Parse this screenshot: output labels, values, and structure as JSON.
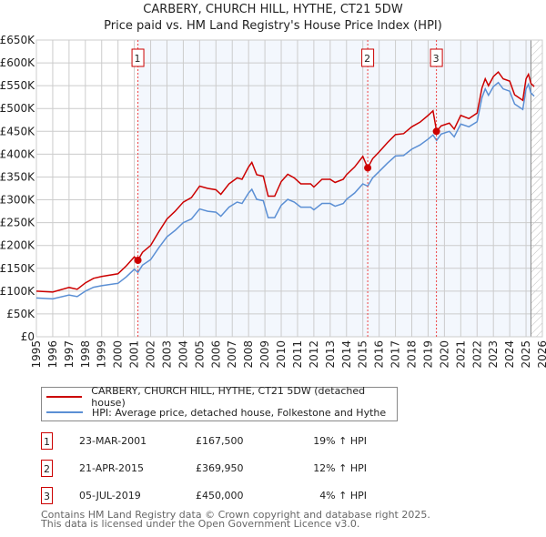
{
  "chart_data": {
    "type": "line",
    "title": "CARBERY, CHURCH HILL, HYTHE, CT21 5DW",
    "subtitle": "Price paid vs. HM Land Registry's House Price Index (HPI)",
    "xlim": [
      1995,
      2026
    ],
    "ylim": [
      0,
      650000
    ],
    "x_ticks": [
      "1995",
      "1996",
      "1997",
      "1998",
      "1999",
      "2000",
      "2001",
      "2002",
      "2003",
      "2004",
      "2005",
      "2006",
      "2007",
      "2008",
      "2009",
      "2010",
      "2011",
      "2012",
      "2013",
      "2014",
      "2015",
      "2016",
      "2017",
      "2018",
      "2019",
      "2020",
      "2021",
      "2022",
      "2023",
      "2024",
      "2025",
      "2026"
    ],
    "y_ticks": [
      {
        "v": 0,
        "label": "£0"
      },
      {
        "v": 50000,
        "label": "£50K"
      },
      {
        "v": 100000,
        "label": "£100K"
      },
      {
        "v": 150000,
        "label": "£150K"
      },
      {
        "v": 200000,
        "label": "£200K"
      },
      {
        "v": 250000,
        "label": "£250K"
      },
      {
        "v": 300000,
        "label": "£300K"
      },
      {
        "v": 350000,
        "label": "£350K"
      },
      {
        "v": 400000,
        "label": "£400K"
      },
      {
        "v": 450000,
        "label": "£450K"
      },
      {
        "v": 500000,
        "label": "£500K"
      },
      {
        "v": 550000,
        "label": "£550K"
      },
      {
        "v": 600000,
        "label": "£600K"
      },
      {
        "v": 650000,
        "label": "£650K"
      }
    ],
    "grid": true,
    "shaded_from": 2001.22,
    "hatched_from": 2025.3,
    "series": [
      {
        "name": "CARBERY, CHURCH HILL, HYTHE, CT21 5DW (detached house)",
        "color": "#cc0000",
        "x": [
          1995,
          1996,
          1997,
          1997.5,
          1998,
          1998.5,
          1999,
          2000,
          2000.5,
          2001,
          2001.22,
          2001.5,
          2002,
          2002.5,
          2003,
          2003.5,
          2004,
          2004.5,
          2005,
          2005.5,
          2006,
          2006.3,
          2006.8,
          2007.3,
          2007.6,
          2008,
          2008.2,
          2008.5,
          2008.9,
          2009.2,
          2009.6,
          2010,
          2010.4,
          2010.8,
          2011.2,
          2011.8,
          2012,
          2012.5,
          2013,
          2013.3,
          2013.8,
          2014,
          2014.5,
          2015,
          2015.3,
          2015.6,
          2016,
          2016.5,
          2017,
          2017.5,
          2018,
          2018.5,
          2019,
          2019.3,
          2019.52,
          2019.8,
          2020.3,
          2020.6,
          2021,
          2021.5,
          2022,
          2022.3,
          2022.5,
          2022.7,
          2023,
          2023.3,
          2023.6,
          2024,
          2024.3,
          2024.8,
          2025,
          2025.15,
          2025.3,
          2025.5
        ],
        "values": [
          100,
          98,
          108,
          104,
          118,
          128,
          132,
          138,
          155,
          175,
          167.5,
          185,
          200,
          230,
          258,
          275,
          295,
          305,
          330,
          325,
          322,
          312,
          335,
          348,
          345,
          372,
          382,
          355,
          352,
          308,
          308,
          340,
          356,
          348,
          335,
          335,
          328,
          345,
          345,
          338,
          345,
          355,
          372,
          395,
          370,
          390,
          405,
          425,
          443,
          445,
          460,
          470,
          485,
          495,
          450,
          462,
          468,
          455,
          485,
          478,
          490,
          545,
          565,
          550,
          570,
          580,
          565,
          560,
          530,
          518,
          565,
          575,
          555,
          548
        ]
      },
      {
        "name": "HPI: Average price, detached house, Folkestone and Hythe",
        "color": "#5b8fd4",
        "x": [
          1995,
          1996,
          1997,
          1997.5,
          1998,
          1998.5,
          1999,
          2000,
          2000.5,
          2001,
          2001.22,
          2001.5,
          2002,
          2002.5,
          2003,
          2003.5,
          2004,
          2004.5,
          2005,
          2005.5,
          2006,
          2006.3,
          2006.8,
          2007.3,
          2007.6,
          2008,
          2008.2,
          2008.5,
          2008.9,
          2009.2,
          2009.6,
          2010,
          2010.4,
          2010.8,
          2011.2,
          2011.8,
          2012,
          2012.5,
          2013,
          2013.3,
          2013.8,
          2014,
          2014.5,
          2015,
          2015.3,
          2015.6,
          2016,
          2016.5,
          2017,
          2017.5,
          2018,
          2018.5,
          2019,
          2019.3,
          2019.52,
          2019.8,
          2020.3,
          2020.6,
          2021,
          2021.5,
          2022,
          2022.3,
          2022.5,
          2022.7,
          2023,
          2023.3,
          2023.6,
          2024,
          2024.3,
          2024.8,
          2025,
          2025.15,
          2025.3,
          2025.5
        ],
        "values": [
          85,
          83,
          91.5,
          88,
          100,
          108.5,
          112,
          117,
          131,
          148,
          141,
          157,
          169,
          195,
          219,
          233,
          250,
          258,
          280,
          275,
          273,
          264,
          284,
          295,
          292,
          315,
          323,
          301,
          298,
          261,
          261,
          288,
          301,
          295,
          284,
          284,
          278,
          292,
          292,
          286,
          292,
          301,
          315,
          335,
          330,
          348,
          362,
          380,
          396,
          397,
          411,
          420,
          433,
          442,
          430,
          444,
          450,
          438,
          466,
          460,
          471,
          524,
          543,
          529,
          548,
          557,
          543,
          538,
          510,
          498,
          543,
          553,
          534,
          527
        ]
      }
    ],
    "value_unit": "thousand GBP",
    "sales": [
      {
        "id": "1",
        "x": 2001.22,
        "value": 167500,
        "date": "23-MAR-2001",
        "price": "£167,500",
        "delta": "19% ↑ HPI"
      },
      {
        "id": "2",
        "x": 2015.3,
        "value": 369950,
        "date": "21-APR-2015",
        "price": "£369,950",
        "delta": "12% ↑ HPI"
      },
      {
        "id": "3",
        "x": 2019.51,
        "value": 450000,
        "date": "05-JUL-2019",
        "price": "£450,000",
        "delta": "4% ↑ HPI"
      }
    ]
  },
  "footer": {
    "line1": "Contains HM Land Registry data © Crown copyright and database right 2025.",
    "line2": "This data is licensed under the Open Government Licence v3.0."
  }
}
